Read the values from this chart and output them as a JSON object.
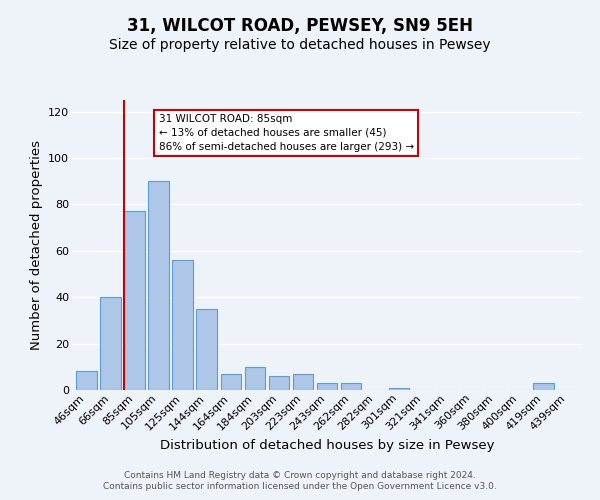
{
  "title": "31, WILCOT ROAD, PEWSEY, SN9 5EH",
  "subtitle": "Size of property relative to detached houses in Pewsey",
  "xlabel": "Distribution of detached houses by size in Pewsey",
  "ylabel": "Number of detached properties",
  "categories": [
    "46sqm",
    "66sqm",
    "85sqm",
    "105sqm",
    "125sqm",
    "144sqm",
    "164sqm",
    "184sqm",
    "203sqm",
    "223sqm",
    "243sqm",
    "262sqm",
    "282sqm",
    "301sqm",
    "321sqm",
    "341sqm",
    "360sqm",
    "380sqm",
    "400sqm",
    "419sqm",
    "439sqm"
  ],
  "values": [
    8,
    40,
    77,
    90,
    56,
    35,
    7,
    10,
    6,
    7,
    3,
    3,
    0,
    1,
    0,
    0,
    0,
    0,
    0,
    3,
    0
  ],
  "bar_color": "#aec6e8",
  "bar_edge_color": "#5a9fd4",
  "highlight_index": 2,
  "highlight_color": "#cc0000",
  "ylim": [
    0,
    125
  ],
  "yticks": [
    0,
    20,
    40,
    60,
    80,
    100,
    120
  ],
  "annotation_text": "31 WILCOT ROAD: 85sqm\n← 13% of detached houses are smaller (45)\n86% of semi-detached houses are larger (293) →",
  "annotation_box_color": "#ffffff",
  "annotation_box_edge": "#cc0000",
  "footer1": "Contains HM Land Registry data © Crown copyright and database right 2024.",
  "footer2": "Contains public sector information licensed under the Open Government Licence v3.0.",
  "bg_color": "#eef2f9",
  "grid_color": "#ffffff",
  "title_fontsize": 12,
  "subtitle_fontsize": 10,
  "axis_label_fontsize": 9.5,
  "tick_fontsize": 8,
  "footer_fontsize": 6.5
}
